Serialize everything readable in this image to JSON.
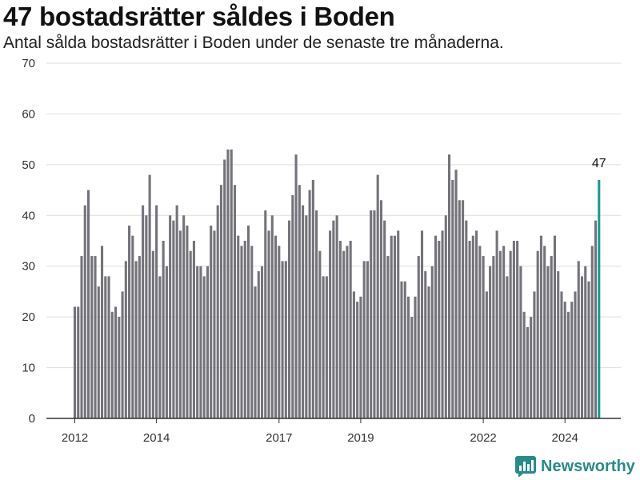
{
  "title": "47 bostadsrätter såldes i Boden",
  "subtitle": "Antal sålda bostadsrätter i Boden under de senaste tre månaderna.",
  "brand": {
    "name": "Newsworthy",
    "icon": "bar-chart-logo-icon"
  },
  "colors": {
    "bar": "#74737a",
    "highlight": "#1a9a94",
    "grid": "#dddddd",
    "axis": "#333333"
  },
  "chart_data": {
    "type": "bar",
    "start": "2012-01",
    "x_ticks": [
      "2012",
      "2014",
      "2017",
      "2019",
      "2022",
      "2024"
    ],
    "y_ticks": [
      "0",
      "10",
      "20",
      "30",
      "40",
      "50",
      "60",
      "70"
    ],
    "ylim": [
      0,
      70
    ],
    "grid": true,
    "highlight_label": "47",
    "values": [
      22,
      22,
      32,
      42,
      45,
      32,
      32,
      26,
      34,
      28,
      28,
      21,
      22,
      20,
      25,
      31,
      38,
      36,
      31,
      32,
      42,
      40,
      48,
      33,
      42,
      28,
      35,
      30,
      40,
      39,
      42,
      37,
      40,
      38,
      33,
      35,
      30,
      30,
      28,
      30,
      38,
      37,
      42,
      46,
      51,
      53,
      53,
      46,
      36,
      34,
      35,
      38,
      34,
      26,
      29,
      30,
      41,
      37,
      40,
      36,
      34,
      31,
      31,
      39,
      44,
      52,
      46,
      42,
      40,
      45,
      47,
      41,
      33,
      28,
      28,
      37,
      39,
      40,
      35,
      33,
      34,
      35,
      25,
      23,
      24,
      31,
      31,
      41,
      41,
      48,
      43,
      39,
      32,
      36,
      36,
      37,
      27,
      27,
      24,
      20,
      24,
      32,
      37,
      29,
      26,
      30,
      36,
      35,
      37,
      40,
      52,
      47,
      49,
      43,
      43,
      39,
      35,
      36,
      37,
      34,
      32,
      25,
      30,
      32,
      37,
      33,
      34,
      28,
      33,
      35,
      35,
      30,
      21,
      18,
      20,
      25,
      33,
      36,
      34,
      30,
      32,
      36,
      29,
      25,
      23,
      21,
      23,
      25,
      31,
      28,
      30,
      27,
      34,
      39,
      47
    ]
  }
}
